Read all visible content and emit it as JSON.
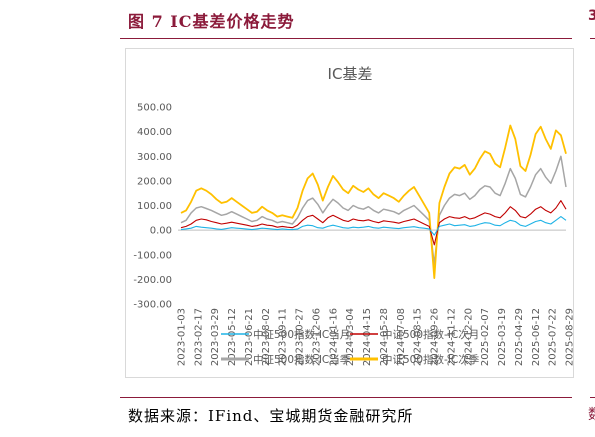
{
  "figure": {
    "title": "图 7 IC基差价格走势",
    "source": "数据来源：IFind、宝城期货金融研究所",
    "edge_glyph_top": "3",
    "edge_glyph_bottom": "数"
  },
  "colors": {
    "accent": "#8b1a3a",
    "series_1": "#1fb3e6",
    "series_2": "#c00000",
    "series_3": "#a6a6a6",
    "series_4": "#ffc000"
  },
  "chart_data": {
    "type": "line",
    "title": "IC基差",
    "xlabel": "",
    "ylabel": "",
    "ylim": [
      -300,
      500
    ],
    "yticks": [
      "500.00",
      "400.00",
      "300.00",
      "200.00",
      "100.00",
      "0.00",
      "-100.00",
      "-200.00",
      "-300.00"
    ],
    "ytick_values": [
      500,
      400,
      300,
      200,
      100,
      0,
      -100,
      -200,
      -300
    ],
    "xticks": [
      "2023-01-03",
      "2023-02-17",
      "2023-03-29",
      "2023-05-12",
      "2023-06-21",
      "2023-08-02",
      "2023-09-11",
      "2023-10-27",
      "2023-12-06",
      "2024-01-16",
      "2024-03-04",
      "2024-04-15",
      "2024-05-28",
      "2024-07-08",
      "2024-08-15",
      "2024-09-26",
      "2024-11-12",
      "2024-12-20",
      "2025-02-07",
      "2025-03-19",
      "2025-04-29",
      "2025-06-12",
      "2025-07-22",
      "2025-08-29"
    ],
    "grid": false,
    "legend_position": "bottom",
    "series": [
      {
        "name": "中证500指数-IC当月",
        "values": [
          2,
          5,
          8,
          15,
          12,
          10,
          8,
          5,
          3,
          6,
          10,
          8,
          6,
          4,
          2,
          5,
          8,
          6,
          4,
          2,
          5,
          3,
          2,
          4,
          15,
          20,
          18,
          10,
          8,
          15,
          20,
          15,
          10,
          8,
          12,
          10,
          12,
          15,
          10,
          8,
          12,
          10,
          8,
          6,
          10,
          12,
          14,
          10,
          8,
          5,
          -20,
          15,
          20,
          25,
          18,
          20,
          22,
          15,
          18,
          25,
          30,
          28,
          20,
          18,
          30,
          40,
          35,
          20,
          15,
          25,
          35,
          40,
          30,
          25,
          40,
          55,
          40
        ]
      },
      {
        "name": "中证500指数-IC次月",
        "values": [
          10,
          15,
          25,
          40,
          45,
          42,
          35,
          30,
          25,
          28,
          32,
          28,
          24,
          20,
          15,
          18,
          25,
          20,
          18,
          12,
          15,
          12,
          10,
          20,
          40,
          55,
          60,
          45,
          30,
          50,
          60,
          50,
          40,
          35,
          45,
          40,
          38,
          42,
          35,
          30,
          38,
          35,
          32,
          28,
          35,
          40,
          45,
          35,
          25,
          15,
          -60,
          30,
          45,
          55,
          50,
          48,
          55,
          45,
          50,
          60,
          70,
          65,
          55,
          50,
          70,
          95,
          80,
          55,
          50,
          65,
          85,
          95,
          80,
          70,
          90,
          120,
          85
        ]
      },
      {
        "name": "中证500指数-IC当季",
        "values": [
          30,
          40,
          70,
          90,
          95,
          88,
          80,
          70,
          60,
          65,
          75,
          65,
          55,
          45,
          35,
          40,
          55,
          45,
          40,
          30,
          35,
          30,
          25,
          50,
          90,
          120,
          130,
          105,
          70,
          100,
          125,
          110,
          90,
          80,
          100,
          90,
          85,
          95,
          80,
          70,
          85,
          80,
          75,
          65,
          80,
          90,
          100,
          80,
          60,
          40,
          -140,
          60,
          100,
          130,
          145,
          140,
          150,
          125,
          140,
          165,
          180,
          175,
          150,
          140,
          190,
          250,
          210,
          145,
          135,
          175,
          225,
          250,
          215,
          190,
          240,
          300,
          175
        ]
      },
      {
        "name": "中证500指数-IC次季",
        "values": [
          70,
          80,
          115,
          160,
          170,
          160,
          145,
          125,
          110,
          115,
          130,
          115,
          100,
          85,
          70,
          75,
          95,
          80,
          70,
          55,
          60,
          55,
          50,
          90,
          160,
          210,
          230,
          185,
          120,
          175,
          220,
          195,
          165,
          150,
          180,
          165,
          155,
          170,
          145,
          130,
          150,
          140,
          130,
          115,
          140,
          160,
          175,
          140,
          105,
          70,
          -195,
          110,
          175,
          230,
          255,
          250,
          265,
          225,
          250,
          290,
          320,
          310,
          270,
          255,
          335,
          425,
          370,
          260,
          240,
          305,
          390,
          420,
          370,
          330,
          405,
          385,
          310
        ]
      }
    ]
  }
}
